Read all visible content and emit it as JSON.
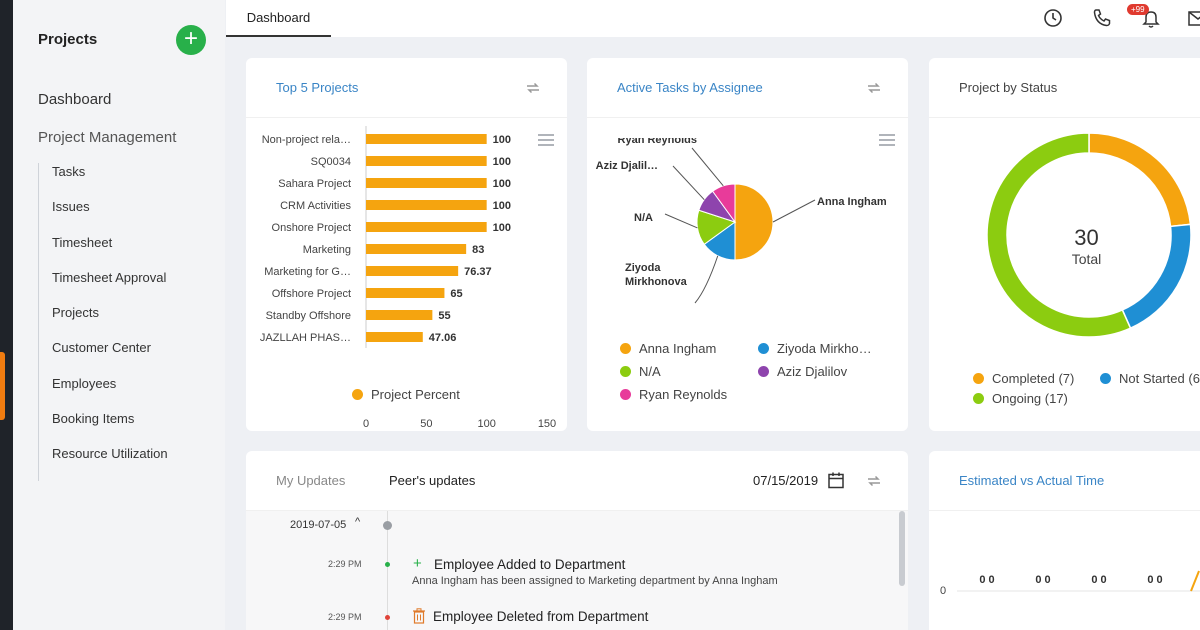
{
  "sidebar": {
    "title": "Projects",
    "add_label": "+",
    "dashboard": "Dashboard",
    "project_management": "Project Management",
    "items": [
      {
        "label": "Tasks"
      },
      {
        "label": "Issues"
      },
      {
        "label": "Timesheet"
      },
      {
        "label": "Timesheet Approval"
      },
      {
        "label": "Projects"
      },
      {
        "label": "Customer Center"
      },
      {
        "label": "Employees"
      },
      {
        "label": "Booking Items"
      },
      {
        "label": "Resource Utilization"
      }
    ]
  },
  "topbar": {
    "tab": "Dashboard",
    "notification_badge": "+99",
    "icons": [
      "clock-icon",
      "phone-icon",
      "bell-icon",
      "mail-icon"
    ]
  },
  "colors": {
    "orange": "#f5a40f",
    "blue": "#1f8fd4",
    "green": "#8ccc10",
    "purple": "#8e44ad",
    "pink": "#e83b9a",
    "link_blue": "#3a85c6"
  },
  "top5": {
    "title": "Top 5 Projects",
    "legend": "Project Percent"
  },
  "assignee": {
    "title": "Active Tasks by Assignee",
    "legend": [
      "Anna Ingham",
      "Ziyoda Mirkho…",
      "N/A",
      "Aziz Djalilov",
      "Ryan Reynolds"
    ]
  },
  "status": {
    "title": "Project by Status",
    "total_value": "30",
    "total_label": "Total",
    "legend": [
      "Completed (7)",
      "Not Started (6",
      "Ongoing (17)"
    ]
  },
  "updates": {
    "tab_my": "My Updates",
    "tab_peer": "Peer's updates",
    "date": "07/15/2019",
    "group_date": "2019-07-05",
    "entries": [
      {
        "time": "2:29 PM",
        "title": "Employee Added to Department",
        "detail": "Anna Ingham has been assigned to Marketing department by Anna Ingham"
      },
      {
        "time": "2:29 PM",
        "title": "Employee Deleted from Department",
        "detail": ""
      }
    ]
  },
  "estimated": {
    "title": "Estimated vs Actual Time"
  },
  "chart_data": [
    {
      "type": "bar",
      "orientation": "horizontal",
      "categories": [
        "Non-project rela…",
        "SQ0034",
        "Sahara Project",
        "CRM Activities",
        "Onshore Project",
        "Marketing",
        "Marketing for G…",
        "Offshore Project",
        "Standby Offshore",
        "JAZLLAH PHAS…"
      ],
      "series": [
        {
          "name": "Project Percent",
          "values": [
            100,
            100,
            100,
            100,
            100,
            83,
            76.37,
            65,
            55,
            47.06
          ]
        }
      ],
      "xlim": [
        0,
        150
      ],
      "xticks": [
        "0",
        "50",
        "100",
        "150"
      ],
      "value_labels": [
        "100",
        "100",
        "100",
        "100",
        "100",
        "83",
        "76.37",
        "65",
        "55",
        "47.06"
      ],
      "legend": "bottom"
    },
    {
      "type": "pie",
      "labels": [
        "Anna Ingham",
        "Ziyoda Mirkhonova",
        "N/A",
        "Aziz Djalil…",
        "Ryan Reynolds"
      ],
      "values": [
        10,
        3,
        3,
        2,
        2
      ]
    },
    {
      "type": "pie",
      "donut": true,
      "labels": [
        "Completed (7)",
        "Not Started (6",
        "Ongoing (17)"
      ],
      "values": [
        7,
        6,
        17
      ]
    },
    {
      "type": "bar",
      "values_shown": [
        "0 0",
        "0 0",
        "0 0",
        "0 0"
      ],
      "yticks": [
        "0"
      ]
    }
  ]
}
